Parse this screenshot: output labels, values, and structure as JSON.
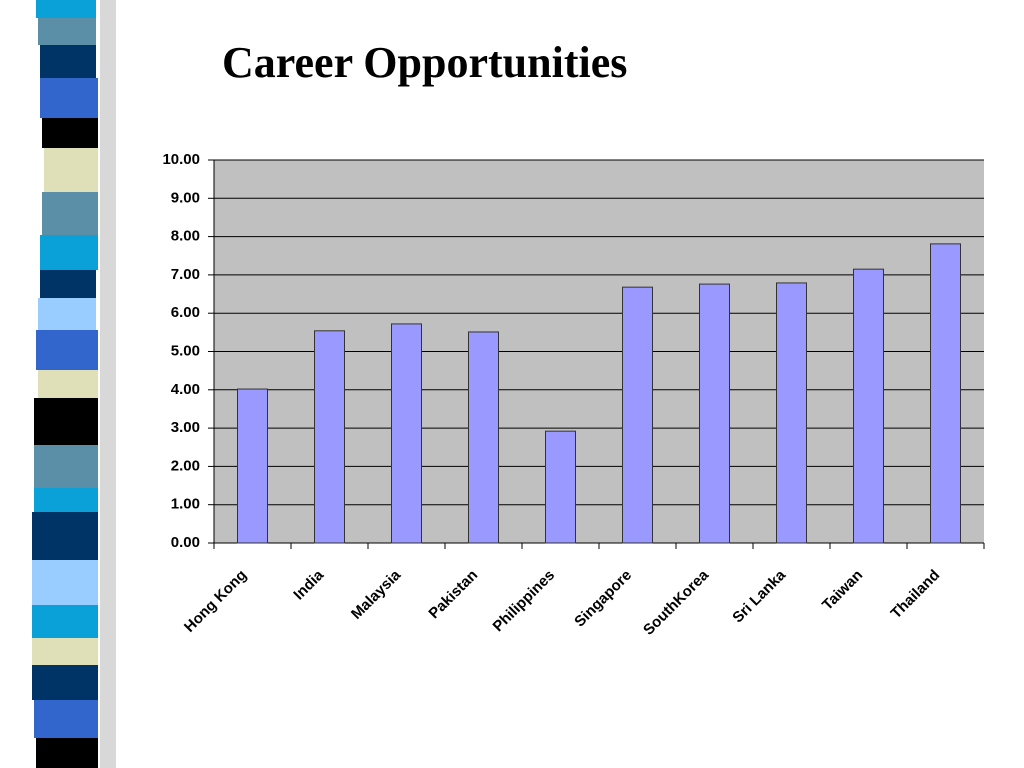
{
  "chart_data": {
    "type": "bar",
    "title": "Career Opportunities",
    "categories": [
      "Hong Kong",
      "India",
      "Malaysia",
      "Pakistan",
      "Philippines",
      "Singapore",
      "SouthKorea",
      "Sri Lanka",
      "Taiwan",
      "Thailand"
    ],
    "values": [
      4.02,
      5.54,
      5.72,
      5.51,
      2.92,
      6.68,
      6.76,
      6.79,
      7.15,
      7.81
    ],
    "color": "#9999ff",
    "ylim": [
      0,
      10
    ],
    "yticks": [
      {
        "value": 0,
        "label": "0.00"
      },
      {
        "value": 1,
        "label": "1.00"
      },
      {
        "value": 2,
        "label": "2.00"
      },
      {
        "value": 3,
        "label": "3.00"
      },
      {
        "value": 4,
        "label": "4.00"
      },
      {
        "value": 5,
        "label": "5.00"
      },
      {
        "value": 6,
        "label": "6.00"
      },
      {
        "value": 7,
        "label": "7.00"
      },
      {
        "value": 8,
        "label": "8.00"
      },
      {
        "value": 9,
        "label": "9.00"
      },
      {
        "value": 10,
        "label": "10.00"
      }
    ],
    "grid": true
  }
}
